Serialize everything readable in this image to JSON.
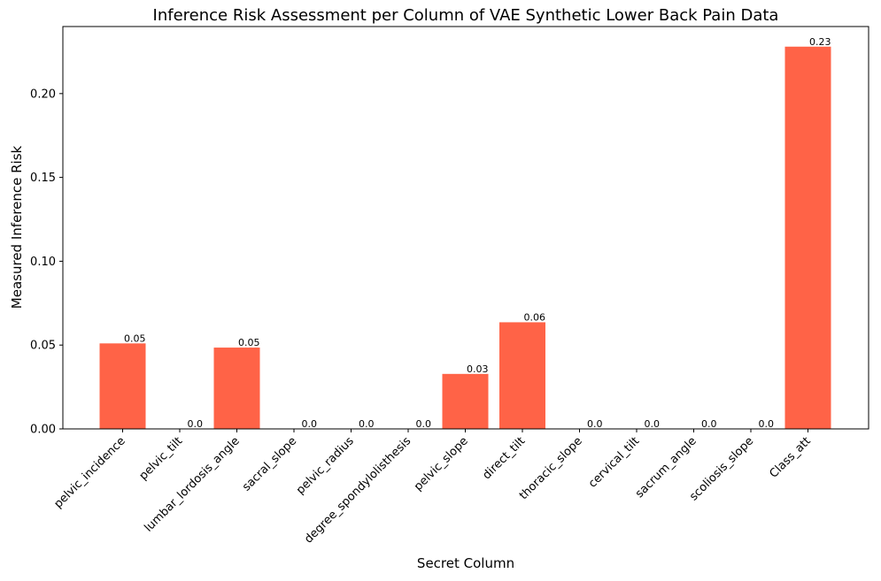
{
  "chart_data": {
    "type": "bar",
    "title": "Inference Risk Assessment per Column of VAE Synthetic Lower Back Pain Data",
    "xlabel": "Secret Column",
    "ylabel": "Measured Inference Risk",
    "categories": [
      "pelvic_incidence",
      "pelvic_tilt",
      "lumbar_lordosis_angle",
      "sacral_slope",
      "pelvic_radius",
      "degree_spondylolisthesis",
      "pelvic_slope",
      "direct_tilt",
      "thoracic_slope",
      "cervical_tilt",
      "sacrum_angle",
      "scoliosis_slope",
      "Class_att"
    ],
    "values": [
      0.051,
      0.0,
      0.0485,
      0.0,
      0.0,
      0.0,
      0.0328,
      0.0636,
      0.0,
      0.0,
      0.0,
      0.0,
      0.228
    ],
    "data_labels": [
      "0.05",
      "0.0",
      "0.05",
      "0.0",
      "0.0",
      "0.0",
      "0.03",
      "0.06",
      "0.0",
      "0.0",
      "0.0",
      "0.0",
      "0.23"
    ],
    "ylim": [
      0,
      0.24
    ],
    "yticks": [
      0.0,
      0.05,
      0.1,
      0.15,
      0.2
    ],
    "ytick_labels": [
      "0.00",
      "0.05",
      "0.10",
      "0.15",
      "0.20"
    ],
    "grid": false,
    "bar_color": "#ff6347"
  }
}
